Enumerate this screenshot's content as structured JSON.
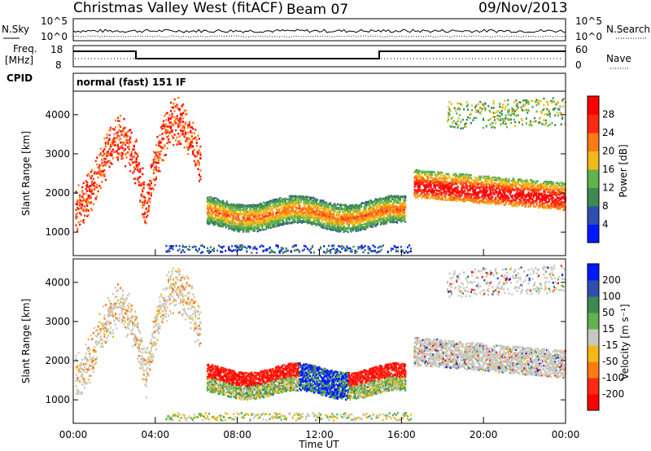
{
  "header": {
    "station": "Christmas Valley West (fitACF)",
    "beam": "Beam 07",
    "date": "09/Nov/2013"
  },
  "top_panels": {
    "nsky_label": "N.Sky",
    "nsky_ticks": [
      "10^5",
      "10^0"
    ],
    "nsearch_label": "N.Search",
    "nsearch_ticks": [
      "10^5",
      "10^0"
    ],
    "freq_label_1": "Freq.",
    "freq_label_2": "[MHz]",
    "freq_ticks": [
      "18",
      "8"
    ],
    "nave_label": "Nave",
    "nave_ticks": [
      "60",
      "0"
    ],
    "cpid_label": "CPID",
    "cpid_value": "normal (fast) 151 IF"
  },
  "chart_data": [
    {
      "type": "heatmap",
      "name": "power-panel",
      "ylabel": "Slant Range [km]",
      "yticks": [
        "1000",
        "2000",
        "3000",
        "4000"
      ],
      "ylim": [
        400,
        4600
      ],
      "xlim": [
        0,
        24
      ],
      "colorbar_label": "Power [dB]",
      "colorbar_ticks": [
        "4",
        "8",
        "12",
        "16",
        "20",
        "24",
        "28"
      ],
      "colors": [
        "#0018ff",
        "#2f4fb0",
        "#3e8a52",
        "#62b24e",
        "#f4b816",
        "#ff7a10",
        "#ff2a10",
        "#ff0000"
      ]
    },
    {
      "type": "heatmap",
      "name": "velocity-panel",
      "ylabel": "Slant Range [km]",
      "yticks": [
        "1000",
        "2000",
        "3000",
        "4000"
      ],
      "ylim": [
        400,
        4600
      ],
      "xlim": [
        0,
        24
      ],
      "colorbar_label": "Velocity [m s⁻¹]",
      "colorbar_ticks": [
        "200",
        "100",
        "50",
        "15",
        "-15",
        "-50",
        "-100",
        "-200"
      ],
      "colors": [
        "#0018ff",
        "#2f4fb0",
        "#3e8a52",
        "#62b24e",
        "#c8c8c0",
        "#f4b816",
        "#ff7a10",
        "#ff2a10",
        "#ff0000"
      ]
    }
  ],
  "time_axis": {
    "ticks": [
      "00:00",
      "04:00",
      "08:00",
      "12:00",
      "16:00",
      "20:00",
      "00:00"
    ],
    "label": "Time UT"
  }
}
